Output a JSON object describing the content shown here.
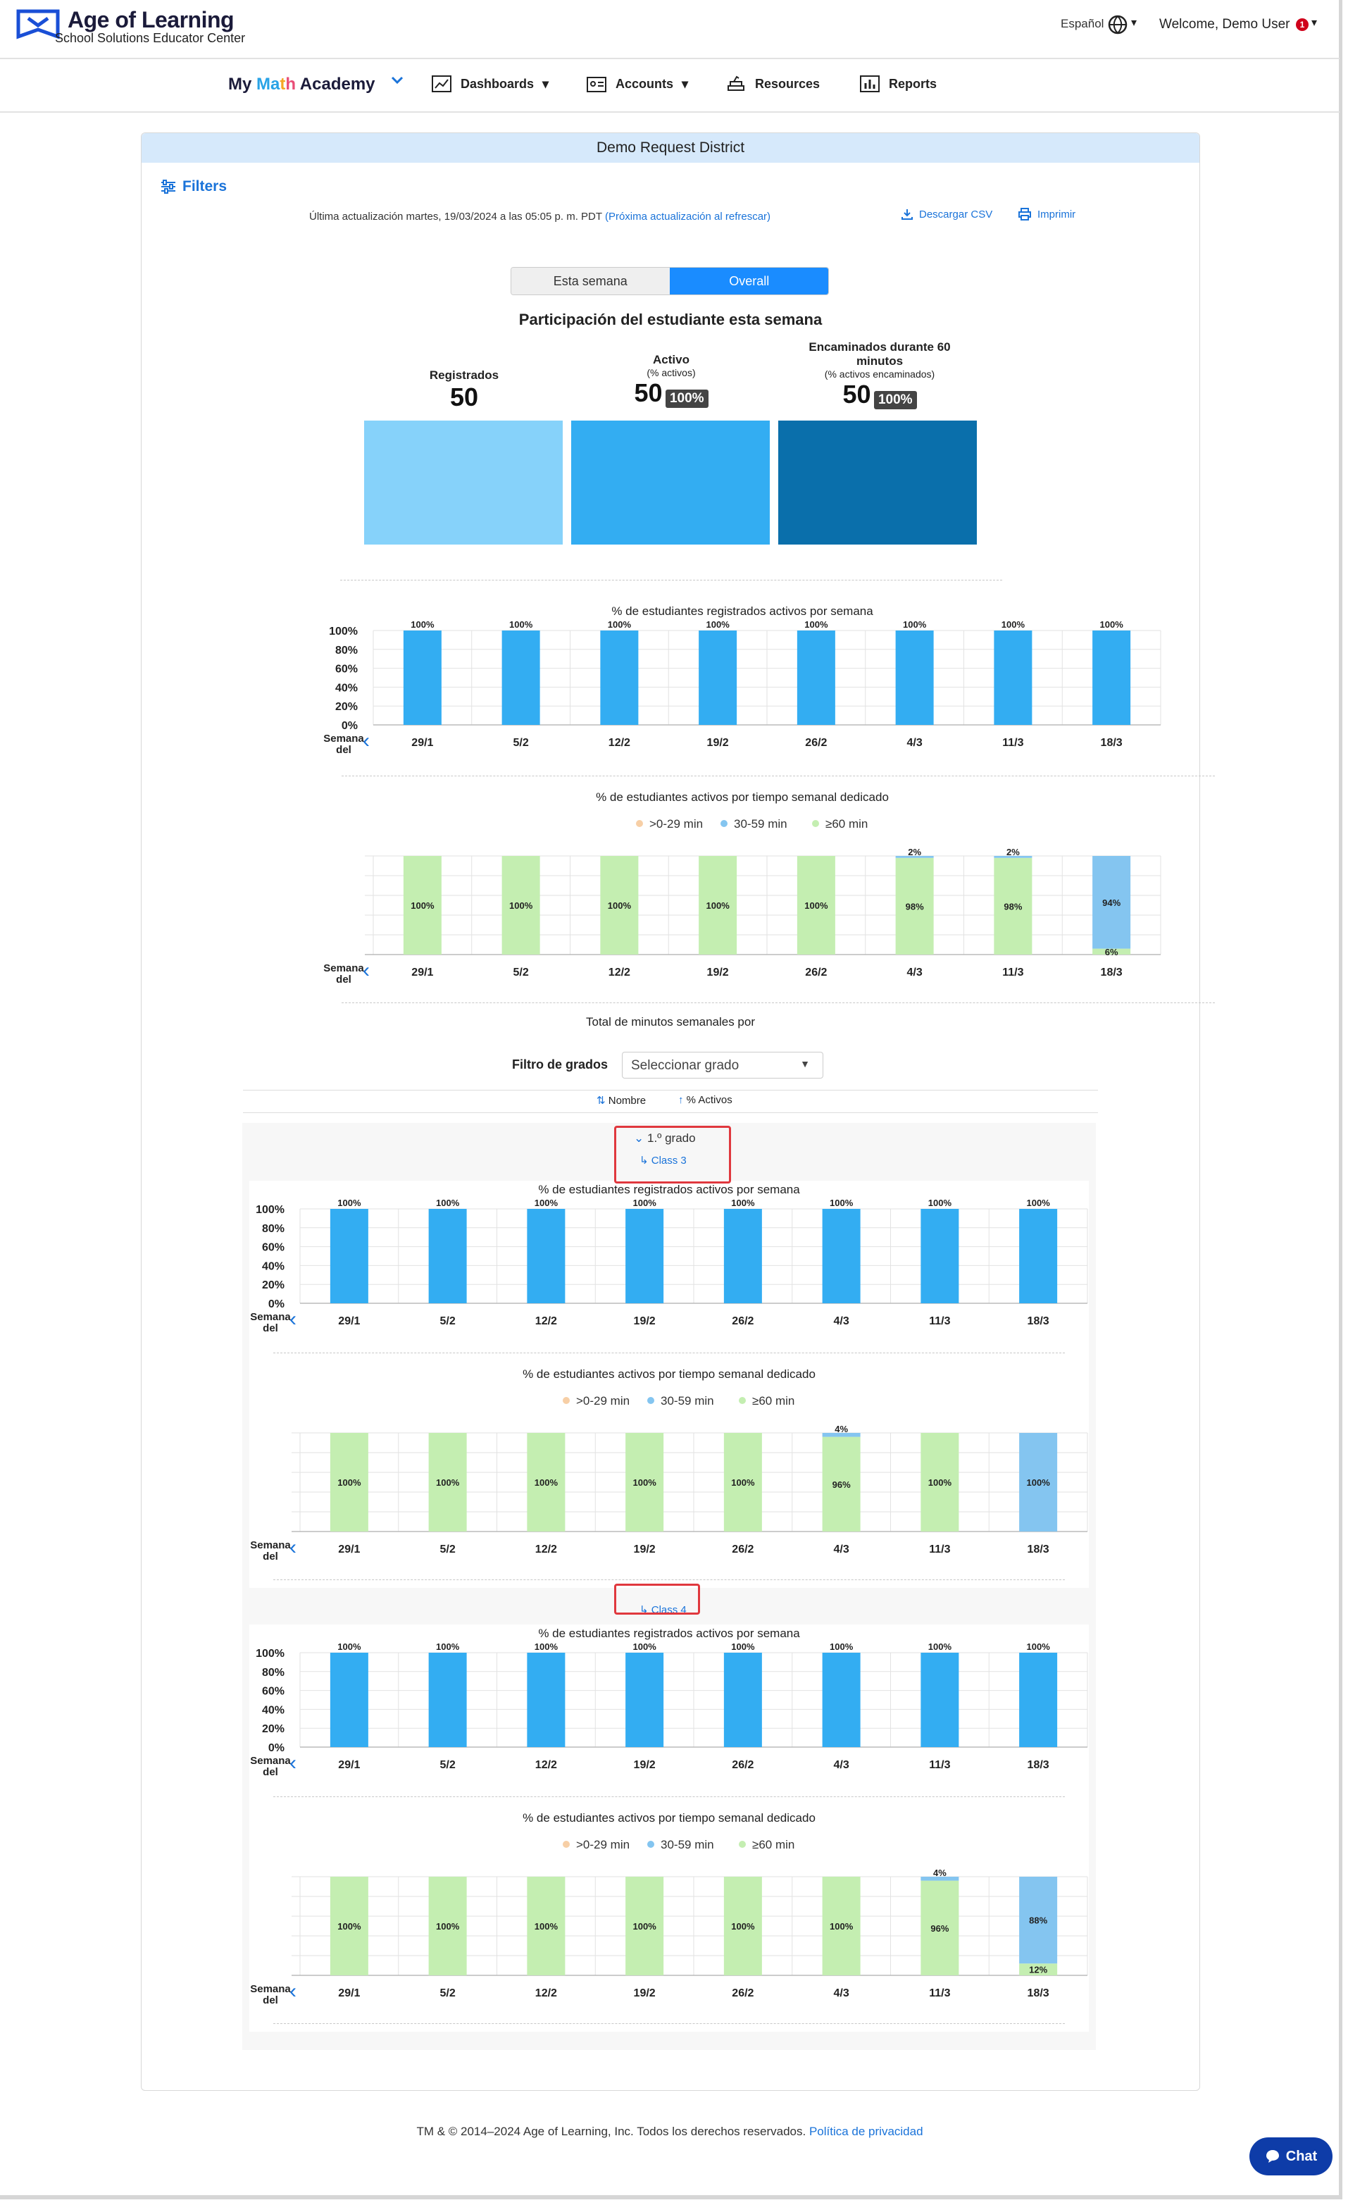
{
  "header": {
    "brand_title": "Age of Learning",
    "brand_subtitle": "School Solutions Educator Center",
    "language": "Español",
    "welcome": "Welcome, Demo User",
    "notification_count": "1"
  },
  "nav": {
    "product": "My Math Academy",
    "items": [
      {
        "label": "Dashboards",
        "icon": "chart-line-icon"
      },
      {
        "label": "Accounts",
        "icon": "id-card-icon"
      },
      {
        "label": "Resources",
        "icon": "books-icon"
      },
      {
        "label": "Reports",
        "icon": "bar-chart-icon"
      }
    ]
  },
  "panel": {
    "title": "Demo Request District",
    "filters_label": "Filters",
    "last_updated": "Última actualización martes, 19/03/2024 a las 05:05 p. m. PDT",
    "next_update": "(Próxima actualización al refrescar)",
    "download_csv": "Descargar CSV",
    "print": "Imprimir",
    "toggle": [
      "Esta semana",
      "Overall"
    ],
    "participation_title": "Participación del estudiante esta semana",
    "metrics": [
      {
        "label": "Registrados",
        "sub": "",
        "value": "50",
        "pct": ""
      },
      {
        "label": "Activo",
        "sub": "(% activos)",
        "value": "50",
        "pct": "100%"
      },
      {
        "label": "Encaminados durante 60 minutos",
        "sub": "(% activos encaminados)",
        "value": "50",
        "pct": "100%"
      }
    ],
    "total_minutes_title": "Total de minutos semanales por",
    "grade_filter_label": "Filtro de grados",
    "grade_filter_value": "Seleccionar grado",
    "sort_name": "Nombre",
    "sort_active": "% Activos",
    "grade_label": "1.º grado",
    "class3_label": "Class 3",
    "class4_label": "Class 4"
  },
  "footer": {
    "text": "TM & © 2014–2024 Age of Learning, Inc. Todos los derechos reservados.",
    "privacy": "Política de privacidad"
  },
  "chat_label": "Chat",
  "colors": {
    "blue": "#33adf2",
    "light_blue": "#86d2fa",
    "dark_blue": "#0a6fab",
    "green": "#c4eeb1",
    "mid_blue": "#84c5f0",
    "orange": "#f7cfa6",
    "link": "#1a73d9"
  },
  "chart_data": [
    {
      "id": "overall_active",
      "type": "bar",
      "title": "% de estudiantes registrados activos por semana",
      "xlabel": "Semana del",
      "categories": [
        "29/1",
        "5/2",
        "12/2",
        "19/2",
        "26/2",
        "4/3",
        "11/3",
        "18/3"
      ],
      "values": [
        100,
        100,
        100,
        100,
        100,
        100,
        100,
        100
      ],
      "ylim": [
        0,
        100
      ],
      "yticks": [
        "100%",
        "80%",
        "60%",
        "40%",
        "20%",
        "0%"
      ]
    },
    {
      "id": "overall_time",
      "type": "bar",
      "stacked": true,
      "title": "% de estudiantes activos por tiempo semanal dedicado",
      "xlabel": "Semana del",
      "categories": [
        "29/1",
        "5/2",
        "12/2",
        "19/2",
        "26/2",
        "4/3",
        "11/3",
        "18/3"
      ],
      "series": [
        {
          "name": ">0-29 min",
          "values": [
            0,
            0,
            0,
            0,
            0,
            0,
            0,
            0
          ]
        },
        {
          "name": "30-59 min",
          "values": [
            0,
            0,
            0,
            0,
            0,
            2,
            2,
            94
          ]
        },
        {
          "name": "≥60 min",
          "values": [
            100,
            100,
            100,
            100,
            100,
            98,
            98,
            6
          ]
        }
      ]
    },
    {
      "id": "class3_active",
      "type": "bar",
      "title": "% de estudiantes registrados activos por semana",
      "xlabel": "Semana del",
      "categories": [
        "29/1",
        "5/2",
        "12/2",
        "19/2",
        "26/2",
        "4/3",
        "11/3",
        "18/3"
      ],
      "values": [
        100,
        100,
        100,
        100,
        100,
        100,
        100,
        100
      ],
      "ylim": [
        0,
        100
      ],
      "yticks": [
        "100%",
        "80%",
        "60%",
        "40%",
        "20%",
        "0%"
      ]
    },
    {
      "id": "class3_time",
      "type": "bar",
      "stacked": true,
      "title": "% de estudiantes activos por tiempo semanal dedicado",
      "xlabel": "Semana del",
      "categories": [
        "29/1",
        "5/2",
        "12/2",
        "19/2",
        "26/2",
        "4/3",
        "11/3",
        "18/3"
      ],
      "series": [
        {
          "name": ">0-29 min",
          "values": [
            0,
            0,
            0,
            0,
            0,
            0,
            0,
            0
          ]
        },
        {
          "name": "30-59 min",
          "values": [
            0,
            0,
            0,
            0,
            0,
            4,
            0,
            100
          ]
        },
        {
          "name": "≥60 min",
          "values": [
            100,
            100,
            100,
            100,
            100,
            96,
            100,
            0
          ]
        }
      ]
    },
    {
      "id": "class4_active",
      "type": "bar",
      "title": "% de estudiantes registrados activos por semana",
      "xlabel": "Semana del",
      "categories": [
        "29/1",
        "5/2",
        "12/2",
        "19/2",
        "26/2",
        "4/3",
        "11/3",
        "18/3"
      ],
      "values": [
        100,
        100,
        100,
        100,
        100,
        100,
        100,
        100
      ],
      "ylim": [
        0,
        100
      ],
      "yticks": [
        "100%",
        "80%",
        "60%",
        "40%",
        "20%",
        "0%"
      ]
    },
    {
      "id": "class4_time",
      "type": "bar",
      "stacked": true,
      "title": "% de estudiantes activos por tiempo semanal dedicado",
      "xlabel": "Semana del",
      "categories": [
        "29/1",
        "5/2",
        "12/2",
        "19/2",
        "26/2",
        "4/3",
        "11/3",
        "18/3"
      ],
      "series": [
        {
          "name": ">0-29 min",
          "values": [
            0,
            0,
            0,
            0,
            0,
            0,
            0,
            0
          ]
        },
        {
          "name": "30-59 min",
          "values": [
            0,
            0,
            0,
            0,
            0,
            0,
            4,
            88
          ]
        },
        {
          "name": "≥60 min",
          "values": [
            100,
            100,
            100,
            100,
            100,
            100,
            96,
            12
          ]
        }
      ]
    }
  ]
}
